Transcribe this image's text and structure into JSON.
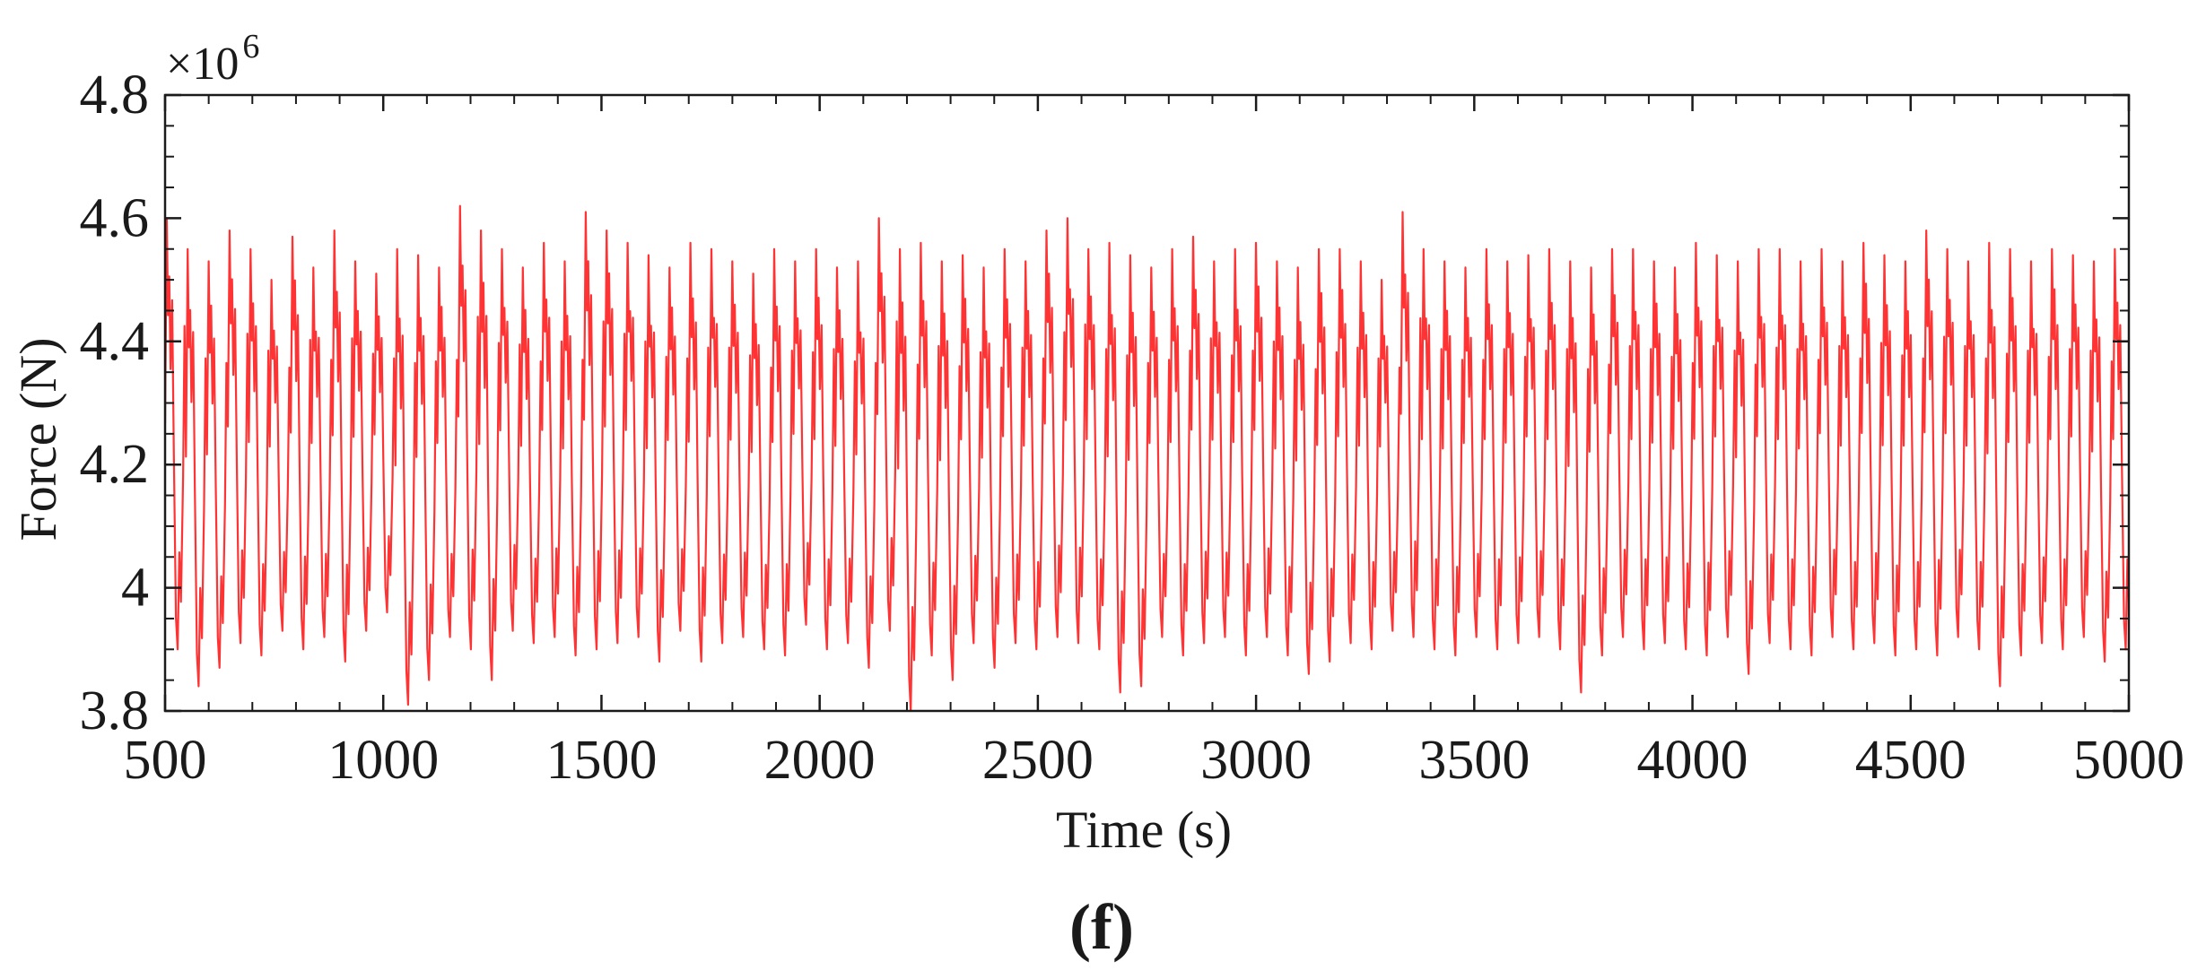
{
  "chart_data": {
    "type": "line",
    "xlabel": "Time (s)",
    "ylabel": "Force (N)",
    "y_exponent_label": {
      "base": "×10",
      "power": "6"
    },
    "panel_label": "(f)",
    "xlim": [
      500,
      5000
    ],
    "ylim": [
      3.8,
      4.8
    ],
    "y_scale_factor": 1000000,
    "x_ticks": [
      500,
      1000,
      1500,
      2000,
      2500,
      3000,
      3500,
      4000,
      4500,
      5000
    ],
    "x_tick_labels": [
      "500",
      "1000",
      "1500",
      "2000",
      "2500",
      "3000",
      "3500",
      "4000",
      "4500",
      "5000"
    ],
    "y_ticks": [
      3.8,
      4.0,
      4.2,
      4.4,
      4.6,
      4.8
    ],
    "y_tick_labels": [
      "3.8",
      "4",
      "4.2",
      "4.4",
      "4.6",
      "4.8"
    ],
    "grid": false,
    "line_color": "#ff3333",
    "series": [
      {
        "period_s": 48,
        "mean": 4.2,
        "peak_values": [
          4.6,
          4.55,
          4.53,
          4.58,
          4.55,
          4.5,
          4.57,
          4.52,
          4.58,
          4.53,
          4.51,
          4.55,
          4.54,
          4.52,
          4.62,
          4.58,
          4.55,
          4.52,
          4.56,
          4.53,
          4.61,
          4.58,
          4.56,
          4.54,
          4.52,
          4.56,
          4.55,
          4.53,
          4.51,
          4.55,
          4.53,
          4.55,
          4.52,
          4.53,
          4.6,
          4.55,
          4.56,
          4.53,
          4.54,
          4.52,
          4.55,
          4.53,
          4.58,
          4.6,
          4.55,
          4.56,
          4.54,
          4.52,
          4.55,
          4.57,
          4.53,
          4.55,
          4.56,
          4.53,
          4.52,
          4.55,
          4.55,
          4.53,
          4.5,
          4.61,
          4.55,
          4.53,
          4.52,
          4.55,
          4.53,
          4.54,
          4.55,
          4.53,
          4.52,
          4.55,
          4.55,
          4.53,
          4.52,
          4.56,
          4.54,
          4.53,
          4.55,
          4.55,
          4.53,
          4.55,
          4.53,
          4.56,
          4.54,
          4.53,
          4.58,
          4.55,
          4.53,
          4.56,
          4.55,
          4.53,
          4.55,
          4.54,
          4.53,
          4.55
        ],
        "trough_values": [
          3.9,
          3.84,
          3.87,
          3.91,
          3.89,
          3.93,
          3.9,
          3.92,
          3.88,
          3.93,
          3.96,
          3.81,
          3.85,
          3.92,
          3.9,
          3.85,
          3.93,
          3.91,
          3.92,
          3.89,
          3.9,
          3.91,
          3.92,
          3.88,
          3.93,
          3.88,
          3.91,
          3.92,
          3.9,
          3.89,
          3.94,
          3.9,
          3.91,
          3.87,
          3.93,
          3.8,
          3.89,
          3.85,
          3.91,
          3.87,
          3.91,
          3.9,
          3.92,
          3.91,
          3.9,
          3.83,
          3.84,
          3.92,
          3.89,
          3.91,
          3.92,
          3.89,
          3.92,
          3.89,
          3.86,
          3.88,
          3.91,
          3.9,
          3.93,
          3.92,
          3.9,
          3.89,
          3.92,
          3.9,
          3.91,
          3.92,
          3.9,
          3.83,
          3.89,
          3.92,
          3.9,
          3.91,
          3.9,
          3.89,
          3.92,
          3.86,
          3.91,
          3.9,
          3.89,
          3.92,
          3.9,
          3.91,
          3.89,
          3.9,
          3.89,
          3.92,
          3.9,
          3.84,
          3.89,
          3.91,
          3.9,
          3.92,
          3.88,
          3.9
        ]
      }
    ]
  }
}
